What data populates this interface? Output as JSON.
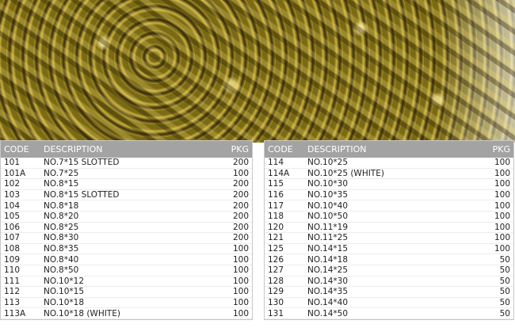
{
  "headers": {
    "code": "CODE",
    "description": "DESCRIPTION",
    "pkg": "PKG"
  },
  "left_rows": [
    {
      "code": "101",
      "description": "NO.7*15 SLOTTED",
      "pkg": "200"
    },
    {
      "code": "101A",
      "description": "NO.7*25",
      "pkg": "100"
    },
    {
      "code": "102",
      "description": "NO.8*15",
      "pkg": "200"
    },
    {
      "code": "103",
      "description": "NO.8*15 SLOTTED",
      "pkg": "200"
    },
    {
      "code": "104",
      "description": "NO.8*18",
      "pkg": "200"
    },
    {
      "code": "105",
      "description": "NO.8*20",
      "pkg": "200"
    },
    {
      "code": "106",
      "description": "NO.8*25",
      "pkg": "200"
    },
    {
      "code": "107",
      "description": "NO.8*30",
      "pkg": "200"
    },
    {
      "code": "108",
      "description": "NO.8*35",
      "pkg": "100"
    },
    {
      "code": "109",
      "description": "NO.8*40",
      "pkg": "100"
    },
    {
      "code": "110",
      "description": "NO.8*50",
      "pkg": "100"
    },
    {
      "code": "111",
      "description": "NO.10*12",
      "pkg": "100"
    },
    {
      "code": "112",
      "description": "NO.10*15",
      "pkg": "100"
    },
    {
      "code": "113",
      "description": "NO.10*18",
      "pkg": "100"
    },
    {
      "code": "113A",
      "description": "NO.10*18 (WHITE)",
      "pkg": "100"
    }
  ],
  "right_rows": [
    {
      "code": "114",
      "description": "NO.10*25",
      "pkg": "100"
    },
    {
      "code": "114A",
      "description": "NO.10*25 (WHITE)",
      "pkg": "100"
    },
    {
      "code": "115",
      "description": "NO.10*30",
      "pkg": "100"
    },
    {
      "code": "116",
      "description": "NO.10*35",
      "pkg": "100"
    },
    {
      "code": "117",
      "description": "NO.10*40",
      "pkg": "100"
    },
    {
      "code": "118",
      "description": "NO.10*50",
      "pkg": "100"
    },
    {
      "code": "120",
      "description": "NO.11*19",
      "pkg": "100"
    },
    {
      "code": "121",
      "description": "NO.11*25",
      "pkg": "100"
    },
    {
      "code": "125",
      "description": "NO.14*15",
      "pkg": "100"
    },
    {
      "code": "126",
      "description": "NO.14*18",
      "pkg": "50"
    },
    {
      "code": "127",
      "description": "NO.14*25",
      "pkg": "50"
    },
    {
      "code": "128",
      "description": "NO.14*30",
      "pkg": "50"
    },
    {
      "code": "129",
      "description": "NO.14*35",
      "pkg": "50"
    },
    {
      "code": "130",
      "description": "NO.14*40",
      "pkg": "50"
    },
    {
      "code": "131",
      "description": "NO.14*50",
      "pkg": "50"
    }
  ]
}
